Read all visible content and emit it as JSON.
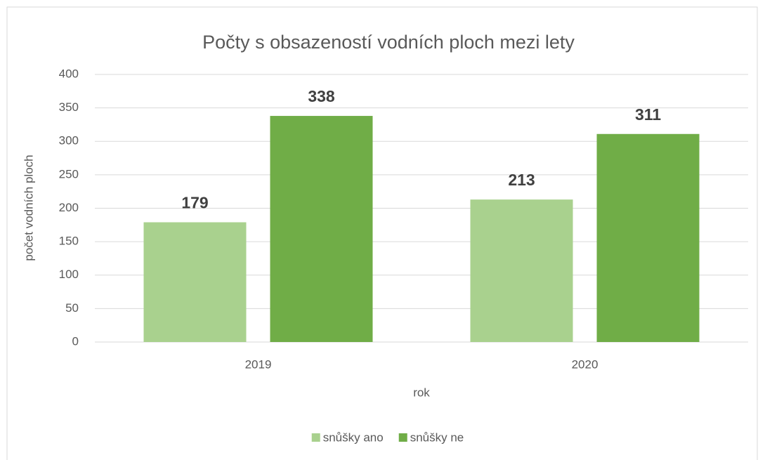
{
  "chart_data": {
    "type": "bar",
    "title": "Počty s obsazeností vodních ploch mezi lety",
    "x_label": "rok",
    "y_label": "počet vodních ploch",
    "categories": [
      "2019",
      "2020"
    ],
    "series": [
      {
        "name": "snůšky ano",
        "color": "#a9d18e",
        "values": [
          179,
          213
        ]
      },
      {
        "name": "snůšky ne",
        "color": "#70ad47",
        "values": [
          338,
          311
        ]
      }
    ],
    "ylim": [
      0,
      400
    ],
    "yticks": [
      0,
      50,
      100,
      150,
      200,
      250,
      300,
      350,
      400
    ],
    "grid": true,
    "legend": "bottom"
  }
}
